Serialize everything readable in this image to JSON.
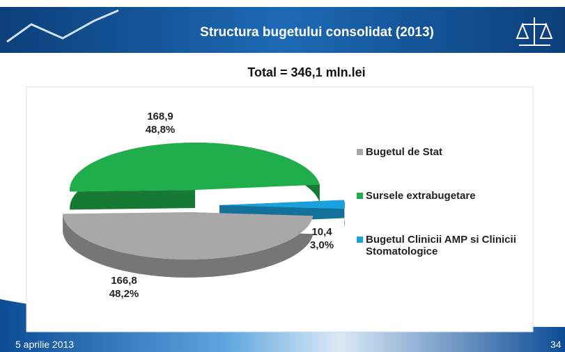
{
  "header": {
    "title": "Structura bugetului consolidat (2013)"
  },
  "footer": {
    "date": "5 aprilie 2013",
    "page": "34"
  },
  "chart_data": {
    "type": "pie",
    "title": "Total = 346,1 mln.lei",
    "categories": [
      "Bugetul de Stat",
      "Sursele extrabugetare",
      "Bugetul Clinicii AMP si Clinicii Stomatologice"
    ],
    "values": [
      166.8,
      168.9,
      10.4
    ],
    "value_labels": [
      "166,8",
      "168,9",
      "10,4"
    ],
    "percents": [
      48.2,
      48.8,
      3.0
    ],
    "percent_labels": [
      "48,2%",
      "48,8%",
      "3,0%"
    ],
    "colors": [
      "#a8a8a8",
      "#1fae4b",
      "#1aa0dc"
    ],
    "legend": "right"
  }
}
